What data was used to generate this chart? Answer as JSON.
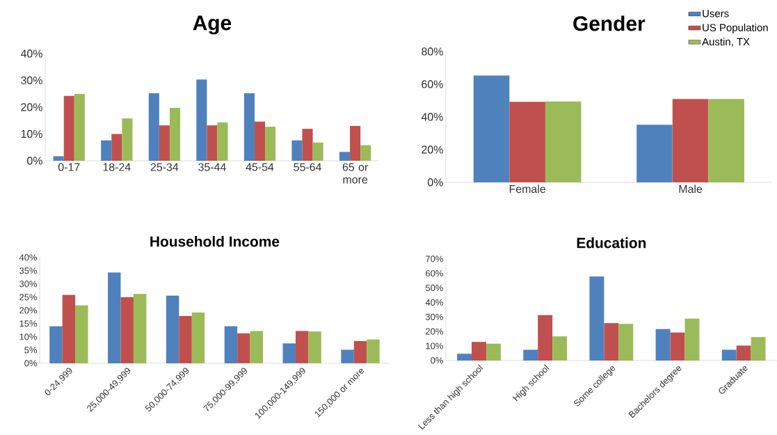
{
  "chart_data": [
    {
      "type": "bar",
      "title": "Age",
      "categories": [
        "0-17",
        "18-24",
        "25-34",
        "35-44",
        "45-54",
        "55-64",
        "65 or more"
      ],
      "ylim": [
        0,
        40
      ],
      "yticks": [
        {
          "value": 0,
          "label": "0%"
        },
        {
          "value": 10,
          "label": "10%"
        },
        {
          "value": 20,
          "label": "20%"
        },
        {
          "value": 30,
          "label": "30%"
        },
        {
          "value": 40,
          "label": "40%"
        }
      ],
      "series": [
        {
          "color": "#4f81bd",
          "values": [
            1.7,
            7.6,
            25.2,
            30.3,
            25.2,
            7.6,
            3.3
          ]
        },
        {
          "color": "#c0504d",
          "values": [
            24.2,
            10.0,
            13.2,
            13.2,
            14.6,
            11.9,
            13.0
          ]
        },
        {
          "color": "#9bbb59",
          "values": [
            24.9,
            15.8,
            19.7,
            14.3,
            12.7,
            6.8,
            5.8
          ]
        }
      ]
    },
    {
      "type": "bar",
      "title": "Gender",
      "categories": [
        "Female",
        "Male"
      ],
      "legend": "top right",
      "ylim": [
        0,
        80
      ],
      "yticks": [
        {
          "value": 0,
          "label": "0%"
        },
        {
          "value": 20,
          "label": "20%"
        },
        {
          "value": 40,
          "label": "40%"
        },
        {
          "value": 60,
          "label": "60%"
        },
        {
          "value": 80,
          "label": "80%"
        }
      ],
      "series": [
        {
          "name": "Users",
          "color": "#4f81bd",
          "values": [
            65.3,
            35.2
          ]
        },
        {
          "name": "US Population",
          "color": "#c0504d",
          "values": [
            49.2,
            50.9
          ]
        },
        {
          "name": "Austin, TX",
          "color": "#9bbb59",
          "values": [
            49.5,
            50.9
          ]
        }
      ]
    },
    {
      "type": "bar",
      "title": "Household Income",
      "categories": [
        "0-24,999",
        "25,000-49,999",
        "50,000-74,999",
        "75,000-99,999",
        "100,000-149,999",
        "150,000 or more"
      ],
      "ylim": [
        0,
        40
      ],
      "yticks": [
        {
          "value": 0,
          "label": "0%"
        },
        {
          "value": 5,
          "label": "5%"
        },
        {
          "value": 10,
          "label": "10%"
        },
        {
          "value": 15,
          "label": "15%"
        },
        {
          "value": 20,
          "label": "20%"
        },
        {
          "value": 25,
          "label": "25%"
        },
        {
          "value": 30,
          "label": "30%"
        },
        {
          "value": 35,
          "label": "35%"
        },
        {
          "value": 40,
          "label": "40%"
        }
      ],
      "series": [
        {
          "color": "#4f81bd",
          "values": [
            14.0,
            34.3,
            25.6,
            14.0,
            7.5,
            5.1
          ]
        },
        {
          "color": "#c0504d",
          "values": [
            25.8,
            25.0,
            17.9,
            11.3,
            12.2,
            8.4
          ]
        },
        {
          "color": "#9bbb59",
          "values": [
            21.9,
            26.2,
            19.2,
            12.2,
            12.0,
            9.0
          ]
        }
      ]
    },
    {
      "type": "bar",
      "title": "Education",
      "categories": [
        "Less than high school",
        "High school",
        "Some college",
        "Bachelors degree",
        "Graduate"
      ],
      "ylim": [
        0,
        70
      ],
      "yticks": [
        {
          "value": 0,
          "label": "0%"
        },
        {
          "value": 10,
          "label": "10%"
        },
        {
          "value": 20,
          "label": "20%"
        },
        {
          "value": 30,
          "label": "30%"
        },
        {
          "value": 40,
          "label": "40%"
        },
        {
          "value": 50,
          "label": "50%"
        },
        {
          "value": 60,
          "label": "60%"
        },
        {
          "value": 70,
          "label": "70%"
        }
      ],
      "series": [
        {
          "color": "#4f81bd",
          "values": [
            4.6,
            7.4,
            57.9,
            21.7,
            7.4
          ]
        },
        {
          "color": "#c0504d",
          "values": [
            12.8,
            31.2,
            25.7,
            19.2,
            10.3
          ]
        },
        {
          "color": "#9bbb59",
          "values": [
            11.6,
            16.6,
            25.3,
            28.9,
            16.1
          ]
        }
      ]
    }
  ]
}
